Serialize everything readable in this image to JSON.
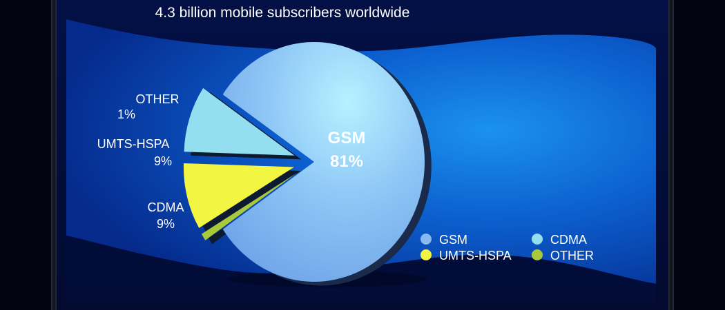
{
  "chart_data": {
    "type": "pie",
    "title": "4.3 billion mobile subscribers worldwide",
    "slices": [
      {
        "label": "GSM",
        "value": 81,
        "value_label": "81%",
        "color": "#8ab8f0"
      },
      {
        "label": "CDMA",
        "value": 9,
        "value_label": "9%",
        "color": "#93dff0"
      },
      {
        "label": "UMTS-HSPA",
        "value": 9,
        "value_label": "9%",
        "color": "#f2f542"
      },
      {
        "label": "OTHER",
        "value": 1,
        "value_label": "1%",
        "color": "#a9c93a"
      }
    ],
    "legend": {
      "placement": "bottom-right",
      "items": [
        {
          "label": "GSM",
          "color": "#8ab8f0"
        },
        {
          "label": "CDMA",
          "color": "#93dff0"
        },
        {
          "label": "UMTS-HSPA",
          "color": "#f2f542"
        },
        {
          "label": "OTHER",
          "color": "#a9c93a"
        }
      ]
    },
    "exploded_slices": [
      "CDMA",
      "UMTS-HSPA",
      "OTHER"
    ]
  },
  "colors": {
    "page_background": "#02040f",
    "panel_dark": "#020a2e",
    "panel_wave_light": "#1a8ae6",
    "panel_wave_dark": "#0636a8",
    "text": "#ffffff"
  }
}
